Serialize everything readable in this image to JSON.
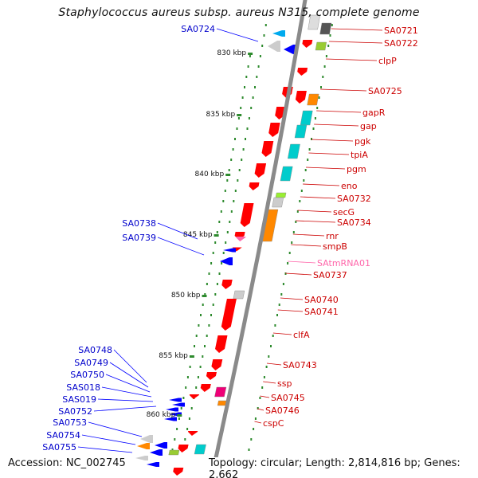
{
  "title": "Staphylococcus aureus subsp. aureus N315, complete genome",
  "footer": {
    "accession": "Accession: NC_002745",
    "summary": "Topology: circular; Length: 2,814,816 bp; Genes: 2,662"
  },
  "colors": {
    "backbone": "#8a8a8a",
    "right_label": "#cc0000",
    "left_label": "#0000cc",
    "rna_label": "#ff66aa",
    "tick": "#2d8a2d",
    "forward_gene": "#ff0000",
    "reverse_gene": "#0000ff"
  },
  "ruler": [
    {
      "label": "830 kbp"
    },
    {
      "label": "835 kbp"
    },
    {
      "label": "840 kbp"
    },
    {
      "label": "845 kbp"
    },
    {
      "label": "850 kbp"
    },
    {
      "label": "855 kbp"
    },
    {
      "label": "860 kbp"
    }
  ],
  "right_labels": [
    {
      "text": "SA0721",
      "color": "#cc0000"
    },
    {
      "text": "SA0722",
      "color": "#cc0000"
    },
    {
      "text": "clpP",
      "color": "#cc0000"
    },
    {
      "text": "SA0725",
      "color": "#cc0000"
    },
    {
      "text": "gapR",
      "color": "#cc0000"
    },
    {
      "text": "gap",
      "color": "#cc0000"
    },
    {
      "text": "pgk",
      "color": "#cc0000"
    },
    {
      "text": "tpiA",
      "color": "#cc0000"
    },
    {
      "text": "pgm",
      "color": "#cc0000"
    },
    {
      "text": "eno",
      "color": "#cc0000"
    },
    {
      "text": "SA0732",
      "color": "#cc0000"
    },
    {
      "text": "secG",
      "color": "#cc0000"
    },
    {
      "text": "SA0734",
      "color": "#cc0000"
    },
    {
      "text": "rnr",
      "color": "#cc0000"
    },
    {
      "text": "smpB",
      "color": "#cc0000"
    },
    {
      "text": "SAtmRNA01",
      "color": "#ff66aa"
    },
    {
      "text": "SA0737",
      "color": "#cc0000"
    },
    {
      "text": "SA0740",
      "color": "#cc0000"
    },
    {
      "text": "SA0741",
      "color": "#cc0000"
    },
    {
      "text": "clfA",
      "color": "#cc0000"
    },
    {
      "text": "SA0743",
      "color": "#cc0000"
    },
    {
      "text": "ssp",
      "color": "#cc0000"
    },
    {
      "text": "SA0745",
      "color": "#cc0000"
    },
    {
      "text": "SA0746",
      "color": "#cc0000"
    },
    {
      "text": "cspC",
      "color": "#cc0000"
    }
  ],
  "left_labels": [
    {
      "text": "SA0724"
    },
    {
      "text": "SA0738"
    },
    {
      "text": "SA0739"
    },
    {
      "text": "SA0748"
    },
    {
      "text": "SA0749"
    },
    {
      "text": "SA0750"
    },
    {
      "text": "SAS018"
    },
    {
      "text": "SAS019"
    },
    {
      "text": "SA0752"
    },
    {
      "text": "SA0753"
    },
    {
      "text": "SA0754"
    },
    {
      "text": "SA0755"
    }
  ]
}
